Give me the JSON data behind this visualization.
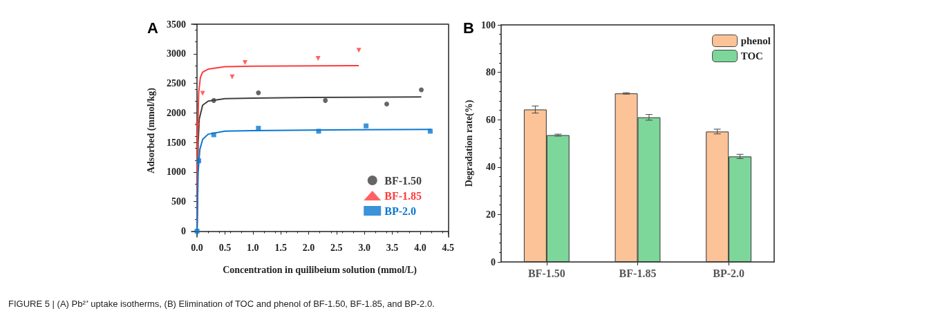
{
  "chart_data": [
    {
      "type": "scatter",
      "title": "A",
      "xlabel": "Concentration in quilibeium solution (mmol/L)",
      "ylabel": "Adsorbed (mmol/kg)",
      "xlim": [
        -0.1,
        4.5
      ],
      "ylim": [
        -100,
        3500
      ],
      "xticks": [
        {
          "value": 0,
          "label": "0.0"
        },
        0.5,
        {
          "value": 1,
          "label": "1.0"
        },
        1.5,
        {
          "value": 2,
          "label": "2.0"
        },
        2.5,
        {
          "value": 3,
          "label": "3.0"
        },
        3.5,
        {
          "value": 4,
          "label": "4.0"
        },
        4.5
      ],
      "yticks": [
        0,
        500,
        1000,
        1500,
        2000,
        2500,
        3000,
        3500
      ],
      "grid": false,
      "legend": "bottom right",
      "annotations": [
        "FIGURE 5 | (A) Pb²⁺ uptake isotherms, (B) Elimination of TOC and phenol of BF-1.50, BF-1.85, and BP-2.0."
      ],
      "series": [
        {
          "name": "BF-1.50",
          "color": "#404040",
          "marker": "circle",
          "x": [
            0.3,
            1.1,
            2.3,
            3.4,
            4.02
          ],
          "values": [
            2210,
            2340,
            2210,
            2150,
            2390
          ]
        },
        {
          "name": "BF-1.85",
          "color": "#ff3b3b",
          "marker": "triangle",
          "x": [
            0.01,
            0.1,
            0.63,
            0.86,
            2.17,
            2.9
          ],
          "values": [
            1790,
            2330,
            2610,
            2850,
            2920,
            3060
          ]
        },
        {
          "name": "BP-2.0",
          "color": "#0a78d0",
          "marker": "square",
          "x": [
            0,
            0.03,
            0.3,
            1.1,
            2.18,
            3.03,
            4.18
          ],
          "values": [
            0,
            1190,
            1630,
            1740,
            1690,
            1780,
            1690
          ]
        },
        {
          "type": "line",
          "color": "#404040",
          "x": [
            0,
            0.02,
            0.04,
            0.1,
            0.2,
            0.5,
            1,
            2,
            4.02
          ],
          "values": [
            0,
            1500,
            1900,
            2130,
            2200,
            2240,
            2250,
            2260,
            2270
          ]
        },
        {
          "type": "line",
          "color": "#ff3b3b",
          "x": [
            0,
            0.01,
            0.03,
            0.06,
            0.1,
            0.2,
            0.5,
            1,
            2.9
          ],
          "values": [
            0,
            1600,
            2350,
            2600,
            2690,
            2740,
            2780,
            2790,
            2800
          ]
        },
        {
          "type": "line",
          "color": "#0a78d0",
          "x": [
            0,
            0.02,
            0.05,
            0.1,
            0.2,
            0.5,
            1,
            2,
            4.2
          ],
          "values": [
            0,
            1000,
            1380,
            1550,
            1640,
            1690,
            1700,
            1710,
            1720
          ]
        }
      ]
    },
    {
      "type": "bar",
      "title": "B",
      "ylabel": "Degradation rate(%)",
      "categories": [
        "BF-1.50",
        "BF-1.85",
        "BP-2.0"
      ],
      "ylim": [
        0,
        100
      ],
      "yticks": [
        0,
        20,
        40,
        60,
        80,
        100
      ],
      "grid": false,
      "legend": "top right",
      "series": [
        {
          "name": "phenol",
          "color": "#fbc397",
          "values": [
            64.3,
            71.1,
            55.0
          ],
          "errors": [
            1.5,
            0.3,
            1.0
          ]
        },
        {
          "name": "TOC",
          "color": "#7dd69a",
          "values": [
            53.5,
            61.0,
            44.5
          ],
          "errors": [
            0.4,
            1.2,
            0.9
          ]
        }
      ]
    }
  ]
}
